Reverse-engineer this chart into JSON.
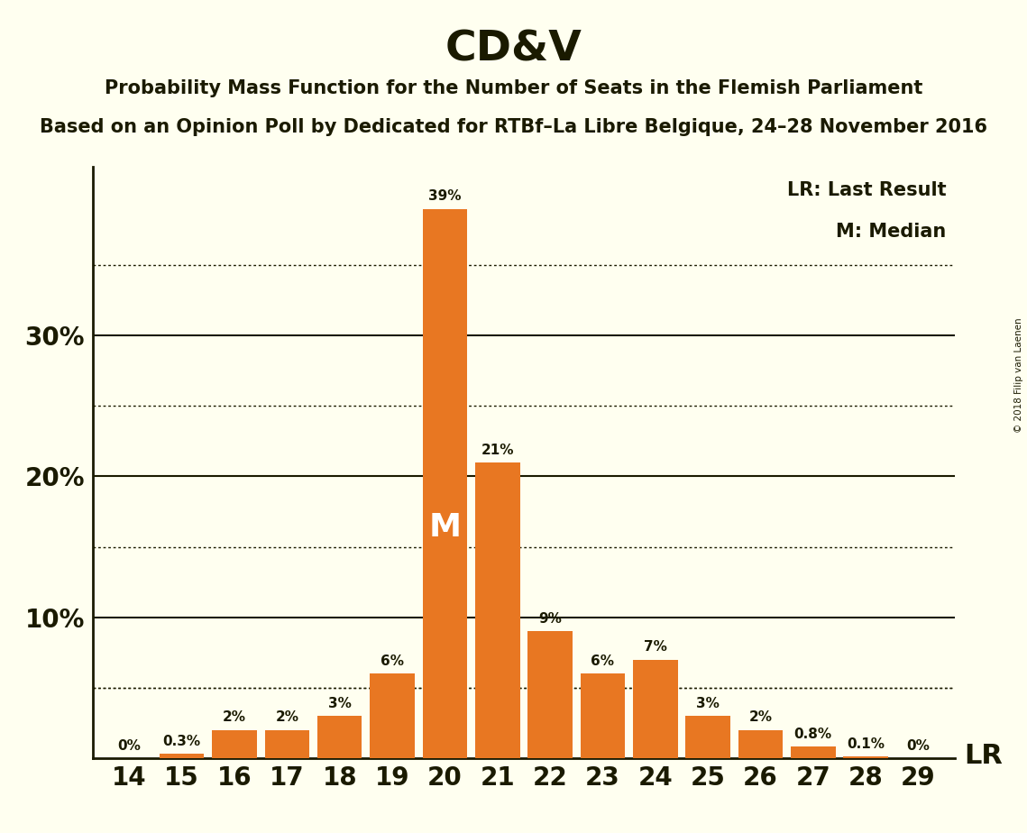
{
  "title": "CD&V",
  "subtitle1": "Probability Mass Function for the Number of Seats in the Flemish Parliament",
  "subtitle2": "Based on an Opinion Poll by Dedicated for RTBf–La Libre Belgique, 24–28 November 2016",
  "copyright": "© 2018 Filip van Laenen",
  "seats": [
    14,
    15,
    16,
    17,
    18,
    19,
    20,
    21,
    22,
    23,
    24,
    25,
    26,
    27,
    28,
    29
  ],
  "probabilities": [
    0.0,
    0.3,
    2.0,
    2.0,
    3.0,
    6.0,
    39.0,
    21.0,
    9.0,
    6.0,
    7.0,
    3.0,
    2.0,
    0.8,
    0.1,
    0.0
  ],
  "labels": [
    "0%",
    "0.3%",
    "2%",
    "2%",
    "3%",
    "6%",
    "39%",
    "21%",
    "9%",
    "6%",
    "7%",
    "3%",
    "2%",
    "0.8%",
    "0.1%",
    "0%"
  ],
  "bar_color": "#E87722",
  "background_color": "#FFFFF0",
  "median_seat": 20,
  "last_result_value": 5.0,
  "ylim": [
    0,
    42
  ],
  "legend_lr": "LR: Last Result",
  "legend_m": "M: Median",
  "dotted_grid_values": [
    5,
    15,
    25,
    35
  ],
  "solid_grid_values": [
    10,
    20,
    30
  ],
  "text_color": "#1a1a00",
  "ytick_positions": [
    10,
    20,
    30
  ],
  "ytick_labels": [
    "10%",
    "20%",
    "30%"
  ]
}
